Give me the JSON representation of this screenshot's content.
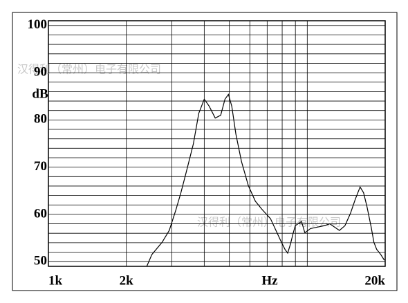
{
  "chart_data": {
    "type": "line",
    "x_axis_label": "Hz",
    "y_axis_label": "dB",
    "watermark": "汉得利（常州）电子有限公司",
    "log_x": true,
    "grid": true,
    "color": "#000000",
    "xlim": [
      1000,
      20000
    ],
    "ylim": [
      49,
      101
    ],
    "xticks": [
      {
        "value": 1000,
        "label": "1k"
      },
      {
        "value": 2000,
        "label": "2k"
      },
      {
        "value": 20000,
        "label": "20k"
      }
    ],
    "yticks": [
      50,
      60,
      70,
      80,
      90,
      100
    ],
    "x_grid": [
      1000,
      2000,
      3000,
      4000,
      5000,
      6000,
      7000,
      8000,
      9000,
      10000,
      20000
    ],
    "y_grid": [
      50,
      52,
      54,
      56,
      58,
      60,
      62,
      64,
      66,
      68,
      70,
      72,
      74,
      76,
      78,
      80,
      82,
      84,
      86,
      88,
      90,
      92,
      94,
      96,
      98,
      100
    ],
    "x": [
      2390,
      2510,
      2750,
      2930,
      3110,
      3250,
      3410,
      3630,
      3810,
      4000,
      4180,
      4410,
      4630,
      4810,
      4960,
      5110,
      5300,
      5570,
      5920,
      6300,
      6700,
      7210,
      7570,
      7900,
      8200,
      8400,
      8610,
      8830,
      8990,
      9210,
      9500,
      9790,
      10290,
      10940,
      11630,
      12220,
      12760,
      13310,
      13980,
      14680,
      15330,
      16000,
      16500,
      17000,
      17660,
      18090,
      18540,
      19230,
      19850
    ],
    "values": [
      48.8,
      51.5,
      54.1,
      56.6,
      61.0,
      64.6,
      69.0,
      74.9,
      81.4,
      84.4,
      82.9,
      80.4,
      81.0,
      84.4,
      85.4,
      82.9,
      77.0,
      71.2,
      66.1,
      62.8,
      61.0,
      59.1,
      56.6,
      54.4,
      52.6,
      51.8,
      53.7,
      56.1,
      57.6,
      58.0,
      58.5,
      56.1,
      57.0,
      57.3,
      57.6,
      58.0,
      57.3,
      56.6,
      57.6,
      60.2,
      63.2,
      65.8,
      64.6,
      61.7,
      57.3,
      54.1,
      52.6,
      51.5,
      50.3
    ]
  }
}
